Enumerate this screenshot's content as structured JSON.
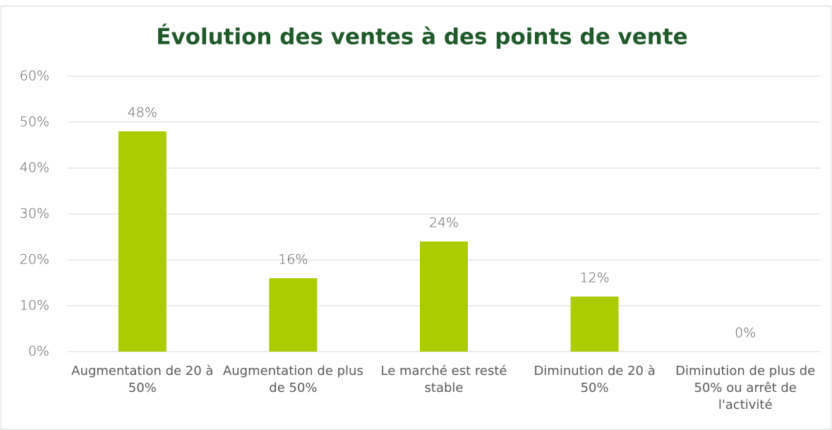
{
  "chart_data": {
    "type": "bar",
    "title": "Évolution des ventes à des points de vente",
    "categories": [
      "Augmentation de 20 à 50%",
      "Augmentation de plus de 50%",
      "Le marché est resté stable",
      "Diminution de 20 à 50%",
      "Diminution de plus de 50% ou arrêt de l'activité"
    ],
    "values": [
      48,
      16,
      24,
      12,
      0
    ],
    "value_labels": [
      "48%",
      "16%",
      "24%",
      "12%",
      "0%"
    ],
    "color": "#aacc00",
    "ylim": [
      0,
      60
    ],
    "yticks": [
      {
        "value": 0,
        "label": "0%"
      },
      {
        "value": 10,
        "label": "10%"
      },
      {
        "value": 20,
        "label": "20%"
      },
      {
        "value": 30,
        "label": "30%"
      },
      {
        "value": 40,
        "label": "40%"
      },
      {
        "value": 50,
        "label": "50%"
      },
      {
        "value": 60,
        "label": "60%"
      }
    ],
    "grid": true
  }
}
